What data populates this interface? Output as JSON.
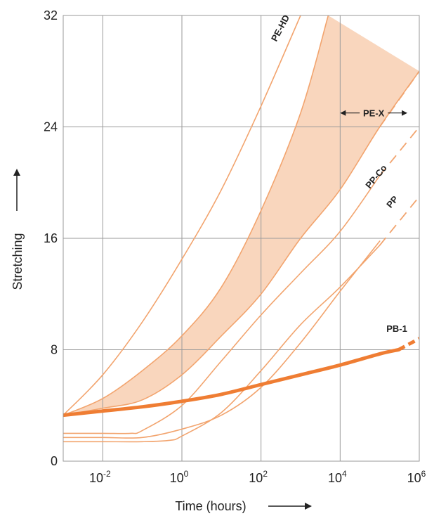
{
  "chart_data": {
    "type": "line",
    "title": "",
    "xlabel": "Time (hours)",
    "ylabel": "Stretching",
    "x_scale": "log",
    "xlim": [
      0.001,
      1000000
    ],
    "ylim": [
      0,
      32
    ],
    "grid": true,
    "x_ticks": [
      {
        "value": 0.01,
        "base": "10",
        "exp": "-2"
      },
      {
        "value": 1,
        "base": "10",
        "exp": "0"
      },
      {
        "value": 100,
        "base": "10",
        "exp": "2"
      },
      {
        "value": 10000,
        "base": "10",
        "exp": "4"
      },
      {
        "value": 1000000,
        "base": "10",
        "exp": "6"
      }
    ],
    "y_ticks": [
      {
        "value": 0,
        "label": "0"
      },
      {
        "value": 8,
        "label": "8"
      },
      {
        "value": 16,
        "label": "16"
      },
      {
        "value": 24,
        "label": "24"
      },
      {
        "value": 32,
        "label": "32"
      }
    ],
    "colors": {
      "thin_line": "#f2a46e",
      "band_fill": "#f9d6bd",
      "pb1": "#ef7d33",
      "grid": "#9a9a9a",
      "text": "#222222"
    },
    "series": [
      {
        "name": "PE-HD",
        "style": "thin",
        "x": [
          0.001,
          0.01,
          0.1,
          1,
          10,
          100,
          1000
        ],
        "y": [
          3.3,
          6.2,
          10,
          14.5,
          19.5,
          25.5,
          32
        ]
      },
      {
        "name": "",
        "style": "thin",
        "x": [
          0.001,
          0.01,
          0.1,
          1,
          10,
          100,
          1000,
          5000
        ],
        "y": [
          3.3,
          4.5,
          6.5,
          9,
          12.5,
          18,
          25,
          32
        ]
      },
      {
        "name": "",
        "style": "thin",
        "x": [
          0.001,
          0.01,
          0.1,
          1,
          10,
          100,
          1000,
          10000,
          100000,
          1000000
        ],
        "y": [
          3.3,
          3.8,
          4.4,
          6.2,
          9,
          12,
          16,
          19.5,
          24,
          28
        ]
      },
      {
        "name": "PP-Co",
        "style": "thin",
        "x": [
          0.001,
          0.01,
          0.05,
          0.1,
          1,
          10,
          100,
          1000,
          10000,
          100000
        ],
        "y": [
          2.0,
          2.0,
          2.0,
          2.2,
          4.0,
          7.2,
          10.5,
          13.5,
          16.5,
          20.5
        ]
      },
      {
        "name": "PP",
        "style": "thin",
        "x": [
          0.001,
          0.01,
          0.1,
          0.5,
          1,
          10,
          100,
          1000,
          10000,
          100000
        ],
        "y": [
          1.4,
          1.4,
          1.4,
          1.5,
          1.8,
          3.5,
          6.5,
          9.8,
          12.5,
          15.5
        ]
      },
      {
        "name": "",
        "style": "thin",
        "x": [
          0.001,
          0.01,
          0.1,
          1,
          10,
          100,
          1000,
          10000,
          100000
        ],
        "y": [
          1.7,
          1.7,
          1.7,
          2.3,
          3.3,
          5.3,
          8.5,
          12.2,
          15.8
        ]
      },
      {
        "name": "PB-1",
        "style": "thick",
        "x": [
          0.001,
          0.01,
          0.1,
          1,
          10,
          100,
          1000,
          10000,
          100000,
          300000
        ],
        "y": [
          3.3,
          3.6,
          3.9,
          4.3,
          4.8,
          5.5,
          6.2,
          6.9,
          7.7,
          8.0
        ]
      }
    ],
    "dashed_extensions": [
      {
        "of": "PE-X",
        "x": [
          100000,
          1000000
        ],
        "y": [
          24,
          28
        ]
      },
      {
        "of": "PP-Co",
        "x": [
          100000,
          1000000
        ],
        "y": [
          20.5,
          24
        ]
      },
      {
        "of": "PP",
        "x": [
          100000,
          1000000
        ],
        "y": [
          15.5,
          19
        ]
      },
      {
        "of": "PB-1",
        "x": [
          300000,
          1000000
        ],
        "y": [
          8.0,
          8.8
        ]
      }
    ],
    "band": {
      "name": "PE-X",
      "between_series": [
        1,
        2
      ]
    },
    "annotations": [
      {
        "text": "PE-X",
        "type": "range-arrow",
        "x_from": 10000,
        "x_to": 500000,
        "y": 25
      }
    ]
  }
}
